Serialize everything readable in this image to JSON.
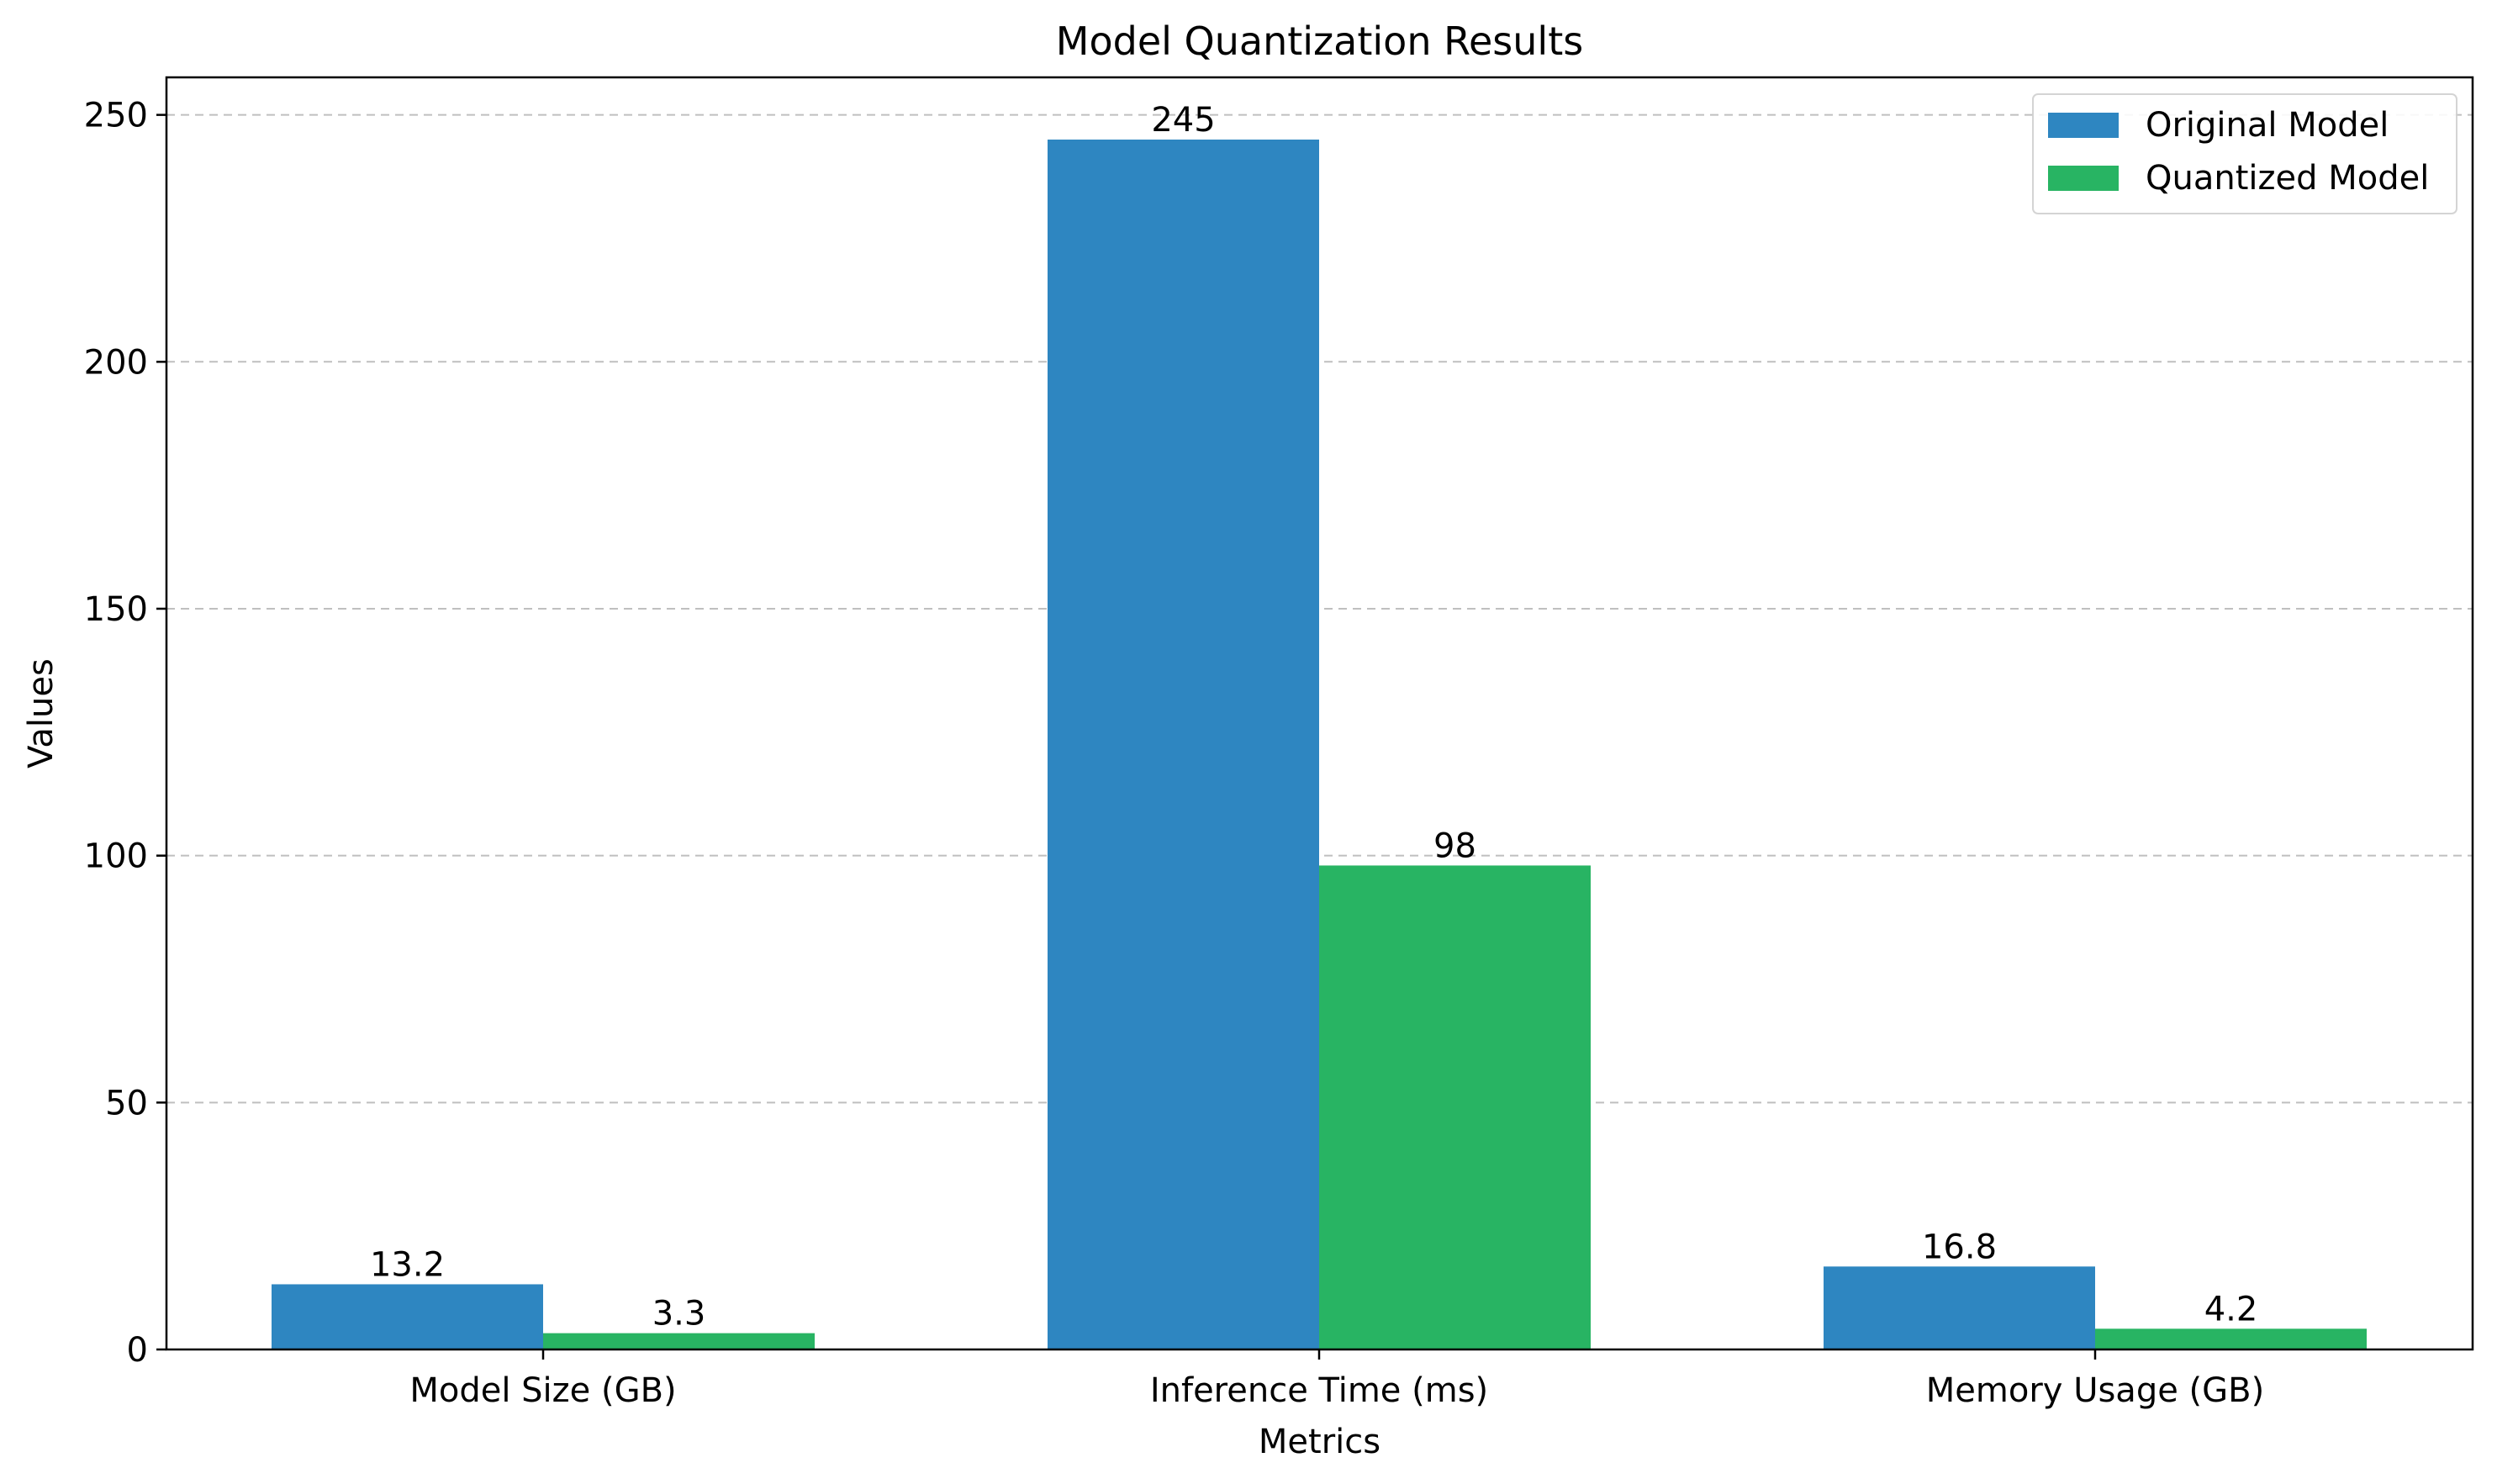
{
  "chart_data": {
    "type": "bar",
    "title": "Model Quantization Results",
    "xlabel": "Metrics",
    "ylabel": "Values",
    "categories": [
      "Model Size (GB)",
      "Inference Time (ms)",
      "Memory Usage (GB)"
    ],
    "series": [
      {
        "name": "Original Model",
        "values": [
          13.2,
          245,
          16.8
        ],
        "labels": [
          "13.2",
          "245",
          "16.8"
        ],
        "color": "#2E86C1"
      },
      {
        "name": "Quantized Model",
        "values": [
          3.3,
          98,
          4.2
        ],
        "labels": [
          "3.3",
          "98",
          "4.2"
        ],
        "color": "#28B463"
      }
    ],
    "ylim": [
      0,
      257.6
    ],
    "yticks": [
      0,
      50,
      100,
      150,
      200,
      250
    ],
    "ytick_labels": [
      "0",
      "50",
      "100",
      "150",
      "200",
      "250"
    ],
    "grid": "y-dashed",
    "legend": "top-right"
  }
}
